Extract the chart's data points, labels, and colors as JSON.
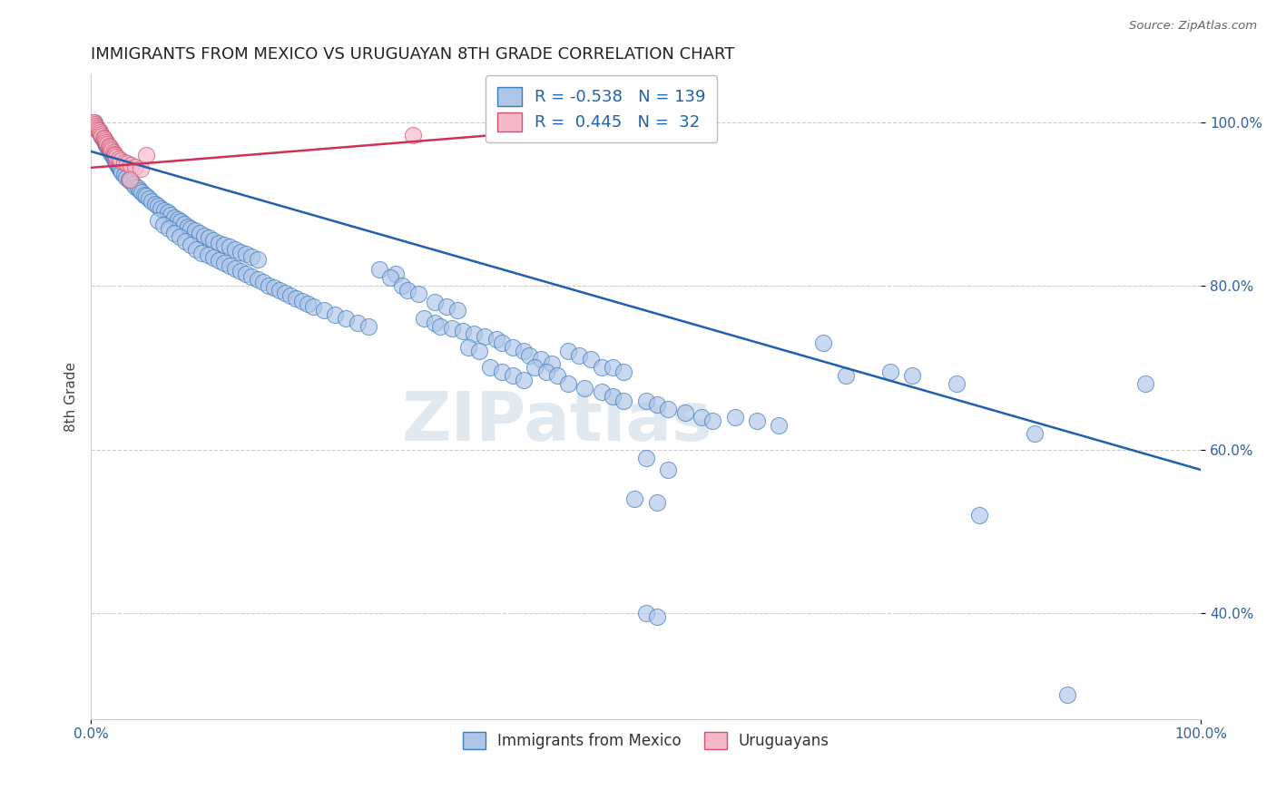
{
  "title": "IMMIGRANTS FROM MEXICO VS URUGUAYAN 8TH GRADE CORRELATION CHART",
  "source": "Source: ZipAtlas.com",
  "ylabel": "8th Grade",
  "xlim": [
    0.0,
    1.0
  ],
  "ylim": [
    0.27,
    1.06
  ],
  "yticks": [
    0.4,
    0.6,
    0.8,
    1.0
  ],
  "ytick_labels": [
    "40.0%",
    "60.0%",
    "80.0%",
    "100.0%"
  ],
  "xtick_labels": [
    "0.0%",
    "100.0%"
  ],
  "legend_blue_r": "-0.538",
  "legend_blue_n": "139",
  "legend_pink_r": "0.445",
  "legend_pink_n": "32",
  "blue_fill_color": "#aec6e8",
  "pink_fill_color": "#f4b8c8",
  "blue_edge_color": "#3a7abf",
  "pink_edge_color": "#d45070",
  "blue_line_color": "#2060b0",
  "pink_line_color": "#d03055",
  "watermark": "ZIPatlas",
  "blue_line_x": [
    0.0,
    1.0
  ],
  "blue_line_y": [
    0.965,
    0.575
  ],
  "pink_line_x": [
    0.0,
    0.5
  ],
  "pink_line_y": [
    0.945,
    1.0
  ],
  "blue_points": [
    [
      0.003,
      1.0
    ],
    [
      0.005,
      0.995
    ],
    [
      0.006,
      0.992
    ],
    [
      0.007,
      0.99
    ],
    [
      0.008,
      0.988
    ],
    [
      0.009,
      0.985
    ],
    [
      0.01,
      0.983
    ],
    [
      0.011,
      0.98
    ],
    [
      0.012,
      0.978
    ],
    [
      0.013,
      0.975
    ],
    [
      0.014,
      0.973
    ],
    [
      0.015,
      0.97
    ],
    [
      0.016,
      0.968
    ],
    [
      0.017,
      0.966
    ],
    [
      0.018,
      0.963
    ],
    [
      0.019,
      0.961
    ],
    [
      0.02,
      0.958
    ],
    [
      0.021,
      0.956
    ],
    [
      0.022,
      0.953
    ],
    [
      0.023,
      0.951
    ],
    [
      0.024,
      0.948
    ],
    [
      0.025,
      0.946
    ],
    [
      0.026,
      0.944
    ],
    [
      0.027,
      0.941
    ],
    [
      0.028,
      0.939
    ],
    [
      0.03,
      0.936
    ],
    [
      0.032,
      0.933
    ],
    [
      0.034,
      0.93
    ],
    [
      0.036,
      0.928
    ],
    [
      0.038,
      0.925
    ],
    [
      0.04,
      0.922
    ],
    [
      0.042,
      0.92
    ],
    [
      0.044,
      0.917
    ],
    [
      0.046,
      0.915
    ],
    [
      0.048,
      0.912
    ],
    [
      0.05,
      0.91
    ],
    [
      0.052,
      0.907
    ],
    [
      0.055,
      0.904
    ],
    [
      0.058,
      0.901
    ],
    [
      0.06,
      0.898
    ],
    [
      0.063,
      0.895
    ],
    [
      0.066,
      0.893
    ],
    [
      0.069,
      0.89
    ],
    [
      0.072,
      0.887
    ],
    [
      0.075,
      0.884
    ],
    [
      0.078,
      0.882
    ],
    [
      0.081,
      0.879
    ],
    [
      0.084,
      0.876
    ],
    [
      0.087,
      0.873
    ],
    [
      0.09,
      0.87
    ],
    [
      0.094,
      0.868
    ],
    [
      0.098,
      0.865
    ],
    [
      0.102,
      0.862
    ],
    [
      0.106,
      0.859
    ],
    [
      0.11,
      0.856
    ],
    [
      0.115,
      0.853
    ],
    [
      0.12,
      0.85
    ],
    [
      0.125,
      0.848
    ],
    [
      0.13,
      0.845
    ],
    [
      0.135,
      0.842
    ],
    [
      0.14,
      0.839
    ],
    [
      0.145,
      0.836
    ],
    [
      0.15,
      0.833
    ],
    [
      0.06,
      0.88
    ],
    [
      0.065,
      0.875
    ],
    [
      0.07,
      0.87
    ],
    [
      0.075,
      0.865
    ],
    [
      0.08,
      0.86
    ],
    [
      0.085,
      0.855
    ],
    [
      0.09,
      0.85
    ],
    [
      0.095,
      0.845
    ],
    [
      0.1,
      0.84
    ],
    [
      0.105,
      0.838
    ],
    [
      0.11,
      0.835
    ],
    [
      0.115,
      0.832
    ],
    [
      0.12,
      0.828
    ],
    [
      0.125,
      0.825
    ],
    [
      0.13,
      0.822
    ],
    [
      0.135,
      0.818
    ],
    [
      0.14,
      0.815
    ],
    [
      0.145,
      0.812
    ],
    [
      0.15,
      0.808
    ],
    [
      0.155,
      0.805
    ],
    [
      0.16,
      0.801
    ],
    [
      0.165,
      0.798
    ],
    [
      0.17,
      0.795
    ],
    [
      0.175,
      0.792
    ],
    [
      0.18,
      0.788
    ],
    [
      0.185,
      0.785
    ],
    [
      0.19,
      0.782
    ],
    [
      0.195,
      0.778
    ],
    [
      0.2,
      0.775
    ],
    [
      0.21,
      0.77
    ],
    [
      0.22,
      0.765
    ],
    [
      0.23,
      0.76
    ],
    [
      0.24,
      0.755
    ],
    [
      0.25,
      0.75
    ],
    [
      0.26,
      0.82
    ],
    [
      0.275,
      0.815
    ],
    [
      0.27,
      0.81
    ],
    [
      0.28,
      0.8
    ],
    [
      0.285,
      0.795
    ],
    [
      0.295,
      0.79
    ],
    [
      0.31,
      0.78
    ],
    [
      0.32,
      0.775
    ],
    [
      0.33,
      0.77
    ],
    [
      0.3,
      0.76
    ],
    [
      0.31,
      0.755
    ],
    [
      0.315,
      0.75
    ],
    [
      0.325,
      0.748
    ],
    [
      0.335,
      0.745
    ],
    [
      0.345,
      0.742
    ],
    [
      0.355,
      0.738
    ],
    [
      0.365,
      0.735
    ],
    [
      0.34,
      0.725
    ],
    [
      0.35,
      0.72
    ],
    [
      0.37,
      0.73
    ],
    [
      0.38,
      0.725
    ],
    [
      0.39,
      0.72
    ],
    [
      0.395,
      0.715
    ],
    [
      0.405,
      0.71
    ],
    [
      0.415,
      0.705
    ],
    [
      0.36,
      0.7
    ],
    [
      0.37,
      0.695
    ],
    [
      0.38,
      0.69
    ],
    [
      0.39,
      0.685
    ],
    [
      0.4,
      0.7
    ],
    [
      0.41,
      0.695
    ],
    [
      0.42,
      0.69
    ],
    [
      0.43,
      0.72
    ],
    [
      0.44,
      0.715
    ],
    [
      0.45,
      0.71
    ],
    [
      0.46,
      0.7
    ],
    [
      0.47,
      0.7
    ],
    [
      0.48,
      0.695
    ],
    [
      0.43,
      0.68
    ],
    [
      0.445,
      0.675
    ],
    [
      0.46,
      0.67
    ],
    [
      0.47,
      0.665
    ],
    [
      0.48,
      0.66
    ],
    [
      0.5,
      0.66
    ],
    [
      0.51,
      0.655
    ],
    [
      0.52,
      0.65
    ],
    [
      0.535,
      0.645
    ],
    [
      0.55,
      0.64
    ],
    [
      0.56,
      0.635
    ],
    [
      0.58,
      0.64
    ],
    [
      0.6,
      0.635
    ],
    [
      0.62,
      0.63
    ],
    [
      0.66,
      0.73
    ],
    [
      0.68,
      0.69
    ],
    [
      0.72,
      0.695
    ],
    [
      0.74,
      0.69
    ],
    [
      0.78,
      0.68
    ],
    [
      0.85,
      0.62
    ],
    [
      0.95,
      0.68
    ],
    [
      0.5,
      0.59
    ],
    [
      0.52,
      0.575
    ],
    [
      0.8,
      0.52
    ],
    [
      0.49,
      0.54
    ],
    [
      0.51,
      0.535
    ],
    [
      0.5,
      0.4
    ],
    [
      0.51,
      0.395
    ],
    [
      0.88,
      0.3
    ]
  ],
  "pink_points": [
    [
      0.002,
      1.0
    ],
    [
      0.003,
      0.998
    ],
    [
      0.004,
      0.996
    ],
    [
      0.005,
      0.994
    ],
    [
      0.006,
      0.992
    ],
    [
      0.007,
      0.99
    ],
    [
      0.008,
      0.988
    ],
    [
      0.009,
      0.986
    ],
    [
      0.01,
      0.984
    ],
    [
      0.011,
      0.982
    ],
    [
      0.012,
      0.98
    ],
    [
      0.013,
      0.978
    ],
    [
      0.014,
      0.976
    ],
    [
      0.015,
      0.974
    ],
    [
      0.016,
      0.972
    ],
    [
      0.017,
      0.97
    ],
    [
      0.018,
      0.968
    ],
    [
      0.019,
      0.966
    ],
    [
      0.02,
      0.964
    ],
    [
      0.021,
      0.962
    ],
    [
      0.022,
      0.96
    ],
    [
      0.023,
      0.958
    ],
    [
      0.025,
      0.956
    ],
    [
      0.027,
      0.954
    ],
    [
      0.03,
      0.952
    ],
    [
      0.033,
      0.95
    ],
    [
      0.036,
      0.948
    ],
    [
      0.04,
      0.946
    ],
    [
      0.045,
      0.944
    ],
    [
      0.05,
      0.96
    ],
    [
      0.29,
      0.985
    ],
    [
      0.035,
      0.93
    ]
  ]
}
